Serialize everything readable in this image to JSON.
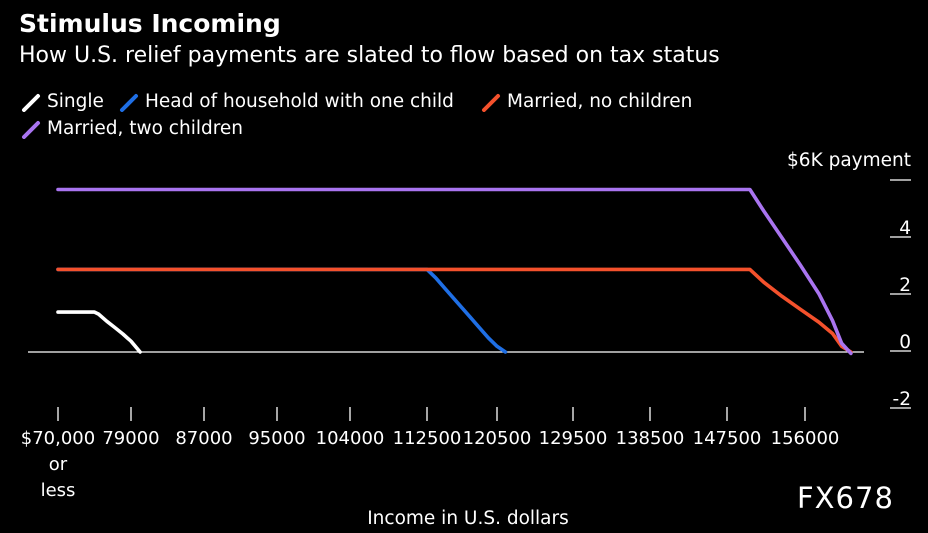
{
  "chart_data": {
    "type": "line",
    "title": "Stimulus Incoming",
    "subtitle": "How U.S. relief payments are slated to flow based on tax status",
    "xlabel": "Income in U.S. dollars",
    "ylabel": "$6K payment",
    "x_ticks": [
      "$70,000 or less",
      "79000",
      "87000",
      "95000",
      "104000",
      "112500",
      "120500",
      "129500",
      "138500",
      "147500",
      "156000"
    ],
    "y_ticks": [
      4,
      2,
      0,
      -2
    ],
    "ylim": [
      -2,
      6
    ],
    "legend_placement": "top-left",
    "series": [
      {
        "name": "Single",
        "color": "#ffffff",
        "points": [
          [
            70000,
            1.4
          ],
          [
            74500,
            1.4
          ],
          [
            75000,
            1.33
          ],
          [
            76000,
            1.08
          ],
          [
            77000,
            0.86
          ],
          [
            78000,
            0.63
          ],
          [
            79000,
            0.38
          ],
          [
            80000,
            0.0
          ]
        ]
      },
      {
        "name": "Head of household with one child",
        "color": "#1f6fe5",
        "points": [
          [
            70000,
            2.9
          ],
          [
            112500,
            2.9
          ],
          [
            113500,
            2.6
          ],
          [
            114500,
            2.25
          ],
          [
            115500,
            1.9
          ],
          [
            116500,
            1.55
          ],
          [
            117500,
            1.2
          ],
          [
            118500,
            0.85
          ],
          [
            119500,
            0.5
          ],
          [
            120500,
            0.2
          ],
          [
            121500,
            0.0
          ]
        ]
      },
      {
        "name": "Married, no children",
        "color": "#f4512c",
        "points": [
          [
            70000,
            2.9
          ],
          [
            150000,
            2.9
          ],
          [
            151500,
            2.45
          ],
          [
            153500,
            1.95
          ],
          [
            155500,
            1.5
          ],
          [
            157500,
            1.05
          ],
          [
            159000,
            0.65
          ],
          [
            160000,
            0.2
          ],
          [
            161000,
            0.0
          ]
        ]
      },
      {
        "name": "Married, two children",
        "color": "#a974f0",
        "points": [
          [
            70000,
            5.7
          ],
          [
            150000,
            5.7
          ],
          [
            151500,
            4.95
          ],
          [
            153500,
            4.0
          ],
          [
            155500,
            3.05
          ],
          [
            157500,
            2.05
          ],
          [
            159000,
            1.1
          ],
          [
            160000,
            0.3
          ],
          [
            161000,
            -0.05
          ]
        ]
      }
    ]
  },
  "watermark": "FX678"
}
